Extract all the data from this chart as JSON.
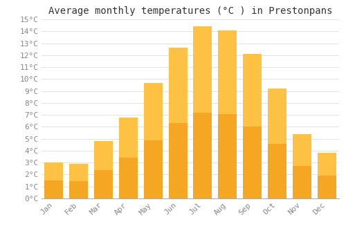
{
  "title": "Average monthly temperatures (°C ) in Prestonpans",
  "months": [
    "Jan",
    "Feb",
    "Mar",
    "Apr",
    "May",
    "Jun",
    "Jul",
    "Aug",
    "Sep",
    "Oct",
    "Nov",
    "Dec"
  ],
  "values": [
    3.0,
    2.9,
    4.8,
    6.8,
    9.7,
    12.6,
    14.4,
    14.1,
    12.1,
    9.2,
    5.4,
    3.8
  ],
  "bar_color_bottom": "#F5A623",
  "bar_color_top": "#FFC84A",
  "background_color": "#FFFFFF",
  "grid_color": "#DDDDDD",
  "ylim_max": 15,
  "yticks": [
    0,
    1,
    2,
    3,
    4,
    5,
    6,
    7,
    8,
    9,
    10,
    11,
    12,
    13,
    14,
    15
  ],
  "title_fontsize": 10,
  "tick_fontsize": 8,
  "title_color": "#333333",
  "tick_color": "#888888",
  "bar_width": 0.75
}
